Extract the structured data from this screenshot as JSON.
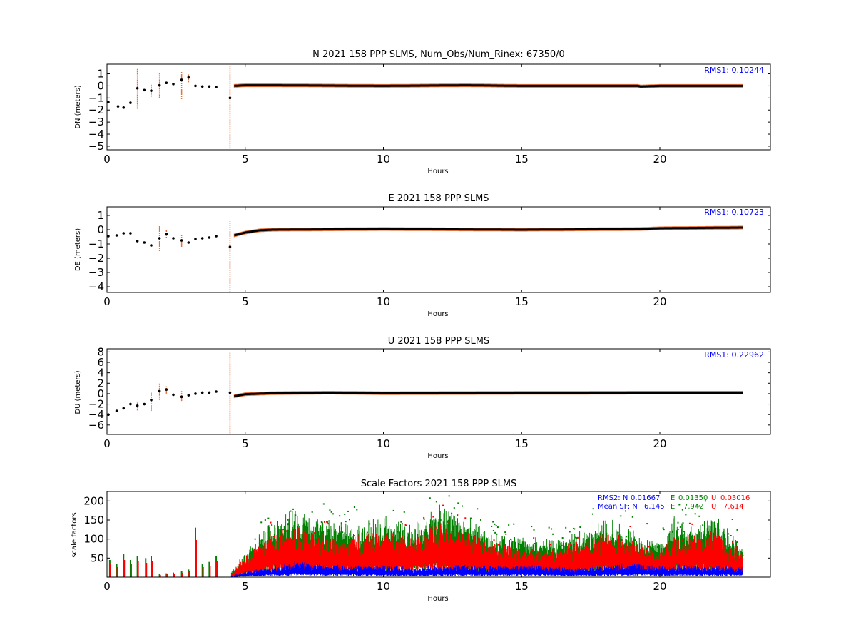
{
  "chart_data": [
    {
      "type": "scatter",
      "title": "N 2021 158 PPP  SLMS, Num_Obs/Num_Rinex: 67350/0",
      "xlabel": "Hours",
      "ylabel": "DN (meters)",
      "xlim": [
        0,
        24
      ],
      "ylim": [
        -5.3,
        1.8
      ],
      "xticks": [
        "0",
        "5",
        "10",
        "15",
        "20"
      ],
      "yticks": [
        "1",
        "0",
        "−1",
        "−2",
        "−3",
        "−4",
        "−5"
      ],
      "annotation": "RMS1:  0.10244",
      "annotation_color": "#0000ff",
      "error_color": "#e8733a",
      "point_color": "#000000",
      "early_points": [
        [
          0.05,
          -1.35
        ],
        [
          0.4,
          -1.7
        ],
        [
          0.6,
          -1.8
        ],
        [
          0.85,
          -1.4
        ],
        [
          1.1,
          -0.2
        ],
        [
          1.35,
          -0.35
        ],
        [
          1.6,
          -0.4
        ],
        [
          1.9,
          0.05
        ],
        [
          2.15,
          0.25
        ],
        [
          2.4,
          0.15
        ],
        [
          2.7,
          0.5
        ],
        [
          2.95,
          0.7
        ],
        [
          3.2,
          0.0
        ],
        [
          3.45,
          -0.05
        ],
        [
          3.7,
          -0.05
        ],
        [
          3.95,
          -0.1
        ],
        [
          4.45,
          -1.0
        ]
      ],
      "spikes": [
        [
          1.1,
          -1.9,
          1.4
        ],
        [
          1.6,
          -0.9,
          0.1
        ],
        [
          1.9,
          -1.0,
          1.1
        ],
        [
          2.7,
          -1.1,
          1.2
        ],
        [
          2.95,
          0.3,
          1.0
        ],
        [
          4.45,
          -5.2,
          1.7
        ]
      ],
      "steady_curve": [
        [
          4.6,
          0.0
        ],
        [
          5,
          0.05
        ],
        [
          6,
          0.05
        ],
        [
          10,
          0.0
        ],
        [
          13,
          0.05
        ],
        [
          15,
          0.0
        ],
        [
          19.2,
          0.0
        ],
        [
          19.3,
          -0.05
        ],
        [
          20,
          0.0
        ],
        [
          21.5,
          0.0
        ],
        [
          23,
          0.0
        ]
      ]
    },
    {
      "type": "scatter",
      "title": "E 2021 158 PPP  SLMS",
      "xlabel": "Hours",
      "ylabel": "DE (meters)",
      "xlim": [
        0,
        24
      ],
      "ylim": [
        -4.4,
        1.6
      ],
      "xticks": [
        "0",
        "5",
        "10",
        "15",
        "20"
      ],
      "yticks": [
        "1",
        "0",
        "−1",
        "−2",
        "−3",
        "−4"
      ],
      "annotation": "RMS1:  0.10723",
      "annotation_color": "#0000ff",
      "error_color": "#e8733a",
      "point_color": "#000000",
      "early_points": [
        [
          0.05,
          -0.45
        ],
        [
          0.35,
          -0.4
        ],
        [
          0.6,
          -0.25
        ],
        [
          0.85,
          -0.25
        ],
        [
          1.1,
          -0.8
        ],
        [
          1.35,
          -0.9
        ],
        [
          1.6,
          -1.1
        ],
        [
          1.9,
          -0.6
        ],
        [
          2.15,
          -0.3
        ],
        [
          2.4,
          -0.6
        ],
        [
          2.7,
          -0.75
        ],
        [
          2.95,
          -0.9
        ],
        [
          3.2,
          -0.65
        ],
        [
          3.45,
          -0.6
        ],
        [
          3.7,
          -0.55
        ],
        [
          3.95,
          -0.45
        ],
        [
          4.45,
          -1.2
        ]
      ],
      "spikes": [
        [
          1.9,
          -1.5,
          0.3
        ],
        [
          2.15,
          -0.6,
          0.0
        ],
        [
          2.7,
          -1.2,
          -0.3
        ],
        [
          4.45,
          -4.4,
          0.6
        ]
      ],
      "steady_curve": [
        [
          4.6,
          -0.4
        ],
        [
          5,
          -0.2
        ],
        [
          5.5,
          -0.05
        ],
        [
          6,
          0.0
        ],
        [
          10,
          0.05
        ],
        [
          15,
          0.0
        ],
        [
          19.3,
          0.05
        ],
        [
          20,
          0.1
        ],
        [
          23,
          0.15
        ]
      ]
    },
    {
      "type": "scatter",
      "title": "U 2021 158 PPP  SLMS",
      "xlabel": "Hours",
      "ylabel": "DU (meters)",
      "xlim": [
        0,
        24
      ],
      "ylim": [
        -7.8,
        8.6
      ],
      "xticks": [
        "0",
        "5",
        "10",
        "15",
        "20"
      ],
      "yticks": [
        "8",
        "6",
        "4",
        "2",
        "0",
        "−2",
        "−4",
        "−6"
      ],
      "annotation": "RMS1:  0.22962",
      "annotation_color": "#0000ff",
      "error_color": "#e8733a",
      "point_color": "#000000",
      "early_points": [
        [
          0.05,
          -4.0
        ],
        [
          0.35,
          -3.3
        ],
        [
          0.6,
          -2.8
        ],
        [
          0.85,
          -2.0
        ],
        [
          1.1,
          -2.3
        ],
        [
          1.35,
          -2.0
        ],
        [
          1.6,
          -1.2
        ],
        [
          1.9,
          0.5
        ],
        [
          2.15,
          0.8
        ],
        [
          2.4,
          -0.2
        ],
        [
          2.7,
          -0.6
        ],
        [
          2.95,
          -0.3
        ],
        [
          3.2,
          0.0
        ],
        [
          3.45,
          0.2
        ],
        [
          3.7,
          0.2
        ],
        [
          3.95,
          0.4
        ],
        [
          4.45,
          0.2
        ]
      ],
      "spikes": [
        [
          1.1,
          -3.2,
          -1.5
        ],
        [
          1.6,
          -3.3,
          0.2
        ],
        [
          1.9,
          -1.2,
          2.0
        ],
        [
          2.15,
          0.0,
          1.4
        ],
        [
          2.7,
          -1.4,
          0.5
        ],
        [
          4.45,
          -7.6,
          8.0
        ]
      ],
      "steady_curve": [
        [
          4.6,
          -0.5
        ],
        [
          5,
          -0.1
        ],
        [
          6,
          0.1
        ],
        [
          8,
          0.2
        ],
        [
          10,
          0.1
        ],
        [
          15,
          0.15
        ],
        [
          20,
          0.2
        ],
        [
          23,
          0.2
        ]
      ]
    },
    {
      "type": "scatter",
      "title": "Scale Factors 2021 158 PPP  SLMS",
      "xlabel": "Hours",
      "ylabel": "scale factors",
      "xlim": [
        0,
        24
      ],
      "ylim": [
        0,
        225
      ],
      "xticks": [
        "0",
        "5",
        "10",
        "15",
        "20"
      ],
      "yticks": [
        "200",
        "150",
        "100",
        "50"
      ],
      "ytick_values": [
        200,
        150,
        100,
        50
      ],
      "legend": {
        "row1": {
          "label": "RMS2: N",
          "n": "0.01667",
          "e_label": "E",
          "e": "0.01350",
          "u_label": "U",
          "u": "0.03016"
        },
        "row2": {
          "label": "Mean SF: N",
          "n": "6.145",
          "e_label": "E",
          "e": "7.942",
          "u_label": "U",
          "u": "7.614"
        }
      },
      "series": [
        {
          "component": "N",
          "color": "#0000ff",
          "values": [
            [
              4.5,
              2
            ],
            [
              5,
              10
            ],
            [
              6,
              18
            ],
            [
              7,
              25
            ],
            [
              8,
              20
            ],
            [
              9,
              18
            ],
            [
              10,
              20
            ],
            [
              11,
              15
            ],
            [
              12,
              18
            ],
            [
              13,
              20
            ],
            [
              14,
              18
            ],
            [
              15,
              20
            ],
            [
              16,
              18
            ],
            [
              17,
              15
            ],
            [
              18,
              20
            ],
            [
              19,
              22
            ],
            [
              20,
              18
            ],
            [
              21,
              20
            ],
            [
              22,
              18
            ],
            [
              23,
              16
            ]
          ]
        },
        {
          "component": "E",
          "color": "#008000",
          "values": [
            [
              4.5,
              10
            ],
            [
              5,
              40
            ],
            [
              6,
              95
            ],
            [
              7,
              110
            ],
            [
              8,
              90
            ],
            [
              9,
              85
            ],
            [
              10,
              95
            ],
            [
              11,
              90
            ],
            [
              12,
              115
            ],
            [
              13,
              95
            ],
            [
              14,
              70
            ],
            [
              15,
              65
            ],
            [
              16,
              60
            ],
            [
              17,
              70
            ],
            [
              18,
              95
            ],
            [
              19,
              75
            ],
            [
              20,
              55
            ],
            [
              20.5,
              95
            ],
            [
              21,
              85
            ],
            [
              22,
              100
            ],
            [
              23,
              50
            ]
          ]
        },
        {
          "component": "U",
          "color": "#ff0000",
          "values": [
            [
              4.5,
              5
            ],
            [
              5,
              35
            ],
            [
              6,
              75
            ],
            [
              7,
              80
            ],
            [
              8,
              70
            ],
            [
              9,
              65
            ],
            [
              10,
              75
            ],
            [
              11,
              70
            ],
            [
              12,
              90
            ],
            [
              13,
              75
            ],
            [
              14,
              55
            ],
            [
              15,
              50
            ],
            [
              16,
              45
            ],
            [
              17,
              55
            ],
            [
              18,
              75
            ],
            [
              19,
              60
            ],
            [
              20,
              40
            ],
            [
              20.5,
              75
            ],
            [
              21,
              65
            ],
            [
              22,
              80
            ],
            [
              23,
              40
            ]
          ]
        }
      ],
      "early_bars": [
        [
          0.1,
          45
        ],
        [
          0.35,
          35
        ],
        [
          0.6,
          60
        ],
        [
          0.85,
          45
        ],
        [
          1.1,
          55
        ],
        [
          1.4,
          50
        ],
        [
          1.6,
          55
        ],
        [
          1.9,
          8
        ],
        [
          2.15,
          10
        ],
        [
          2.4,
          12
        ],
        [
          2.7,
          15
        ],
        [
          2.95,
          20
        ],
        [
          3.2,
          130
        ],
        [
          3.45,
          35
        ],
        [
          3.7,
          40
        ],
        [
          3.95,
          55
        ]
      ]
    }
  ]
}
